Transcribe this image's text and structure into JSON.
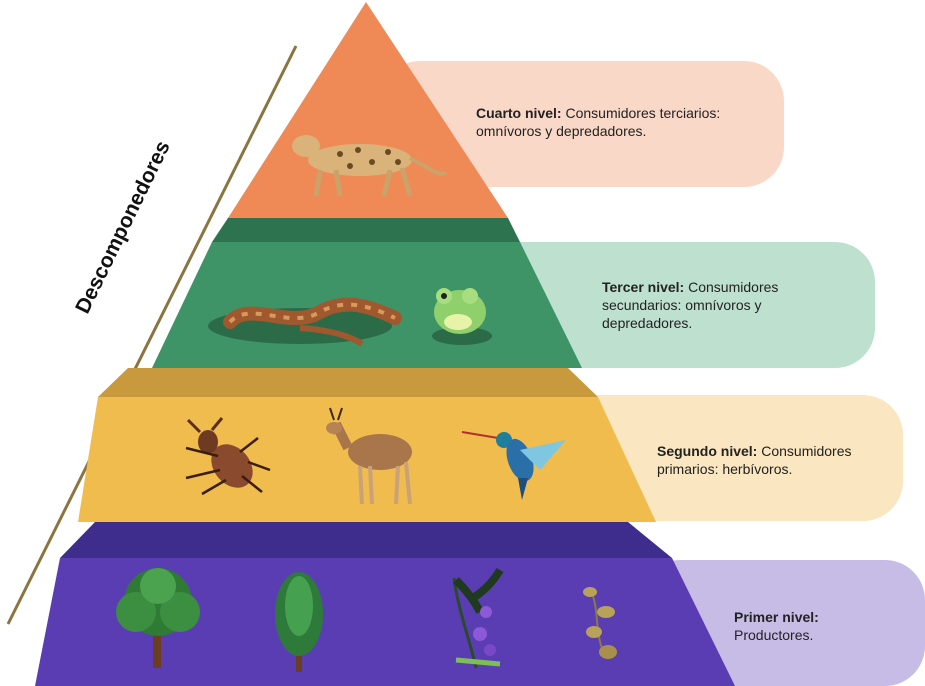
{
  "decomposers": {
    "label": "Descomponedores"
  },
  "levels": [
    {
      "id": "cuarto",
      "title": "Cuarto nivel:",
      "desc": "Consumidores terciarios: omnívoros y depredadores.",
      "color": "#EF8A57",
      "box_color": "#F9D8C8",
      "organisms": [
        "jaguar"
      ]
    },
    {
      "id": "tercer",
      "title": "Tercer nivel:",
      "desc": "Consumidores secundarios: omnívoros y depredadores.",
      "color": "#3E9467",
      "box_color": "#BEE0CF",
      "organisms": [
        "snake",
        "frog"
      ]
    },
    {
      "id": "segundo",
      "title": "Segundo nivel:",
      "desc": "Consumidores primarios: herbívoros.",
      "color": "#F0BC4E",
      "box_color": "#FAE6C0",
      "organisms": [
        "beetle",
        "antelope",
        "hummingbird"
      ]
    },
    {
      "id": "primer",
      "title": "Primer nivel:",
      "desc": "Productores.",
      "color": "#5A3DB3",
      "box_color": "#C6BCE5",
      "organisms": [
        "round-tree",
        "conifer-tree",
        "flowering-plant",
        "vine"
      ]
    }
  ]
}
